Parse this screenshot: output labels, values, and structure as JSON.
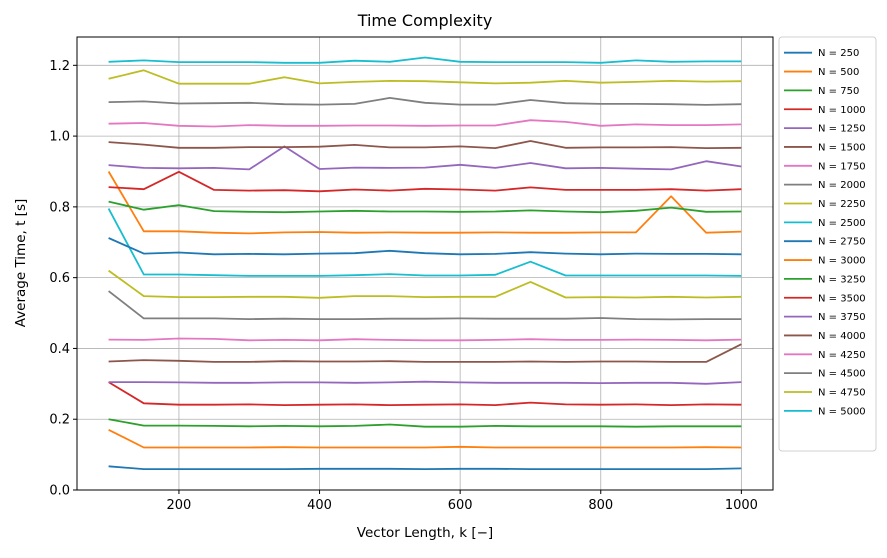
{
  "chart_data": {
    "type": "line",
    "title": "Time Complexity",
    "xlabel": "Vector Length, k [−]",
    "ylabel": "Average Time, t [s]",
    "xlim": [
      55,
      1045
    ],
    "ylim": [
      0,
      1.28
    ],
    "xticks": [
      200,
      400,
      600,
      800,
      1000
    ],
    "xtick_labels": [
      "200",
      "400",
      "600",
      "800",
      "1000"
    ],
    "yticks": [
      0,
      0.2,
      0.4,
      0.6,
      0.8,
      1.0,
      1.2
    ],
    "ytick_labels": [
      "0.0",
      "0.2",
      "0.4",
      "0.6",
      "0.8",
      "1.0",
      "1.2"
    ],
    "grid": true,
    "legend_placement": "outside-right",
    "x": [
      100,
      150,
      200,
      250,
      300,
      350,
      400,
      450,
      500,
      550,
      600,
      650,
      700,
      750,
      800,
      850,
      900,
      950,
      1000
    ],
    "series": [
      {
        "name": "N = 250",
        "color": "#1f77b4",
        "values": [
          0.067,
          0.059,
          0.059,
          0.059,
          0.059,
          0.059,
          0.06,
          0.06,
          0.06,
          0.059,
          0.06,
          0.06,
          0.059,
          0.059,
          0.059,
          0.059,
          0.059,
          0.059,
          0.061
        ]
      },
      {
        "name": "N = 500",
        "color": "#ff7f0e",
        "values": [
          0.17,
          0.12,
          0.12,
          0.12,
          0.12,
          0.121,
          0.12,
          0.12,
          0.12,
          0.12,
          0.122,
          0.12,
          0.12,
          0.12,
          0.12,
          0.12,
          0.12,
          0.121,
          0.12
        ]
      },
      {
        "name": "N = 750",
        "color": "#2ca02c",
        "values": [
          0.2,
          0.182,
          0.182,
          0.181,
          0.18,
          0.181,
          0.18,
          0.181,
          0.185,
          0.179,
          0.179,
          0.181,
          0.18,
          0.18,
          0.18,
          0.179,
          0.18,
          0.18,
          0.18
        ]
      },
      {
        "name": "N = 1000",
        "color": "#d62728",
        "values": [
          0.305,
          0.245,
          0.241,
          0.241,
          0.242,
          0.24,
          0.241,
          0.242,
          0.24,
          0.241,
          0.242,
          0.24,
          0.247,
          0.242,
          0.241,
          0.242,
          0.24,
          0.242,
          0.241
        ]
      },
      {
        "name": "N = 1250",
        "color": "#9467bd",
        "values": [
          0.305,
          0.305,
          0.304,
          0.303,
          0.303,
          0.304,
          0.304,
          0.303,
          0.304,
          0.306,
          0.304,
          0.303,
          0.303,
          0.303,
          0.302,
          0.303,
          0.303,
          0.3,
          0.305
        ]
      },
      {
        "name": "N = 1500",
        "color": "#8c564b",
        "values": [
          0.363,
          0.367,
          0.365,
          0.362,
          0.362,
          0.364,
          0.363,
          0.363,
          0.364,
          0.362,
          0.362,
          0.362,
          0.363,
          0.362,
          0.363,
          0.363,
          0.362,
          0.362,
          0.412
        ]
      },
      {
        "name": "N = 1750",
        "color": "#e377c2",
        "values": [
          0.425,
          0.424,
          0.428,
          0.427,
          0.423,
          0.424,
          0.423,
          0.426,
          0.424,
          0.423,
          0.423,
          0.424,
          0.426,
          0.424,
          0.424,
          0.425,
          0.424,
          0.423,
          0.425
        ]
      },
      {
        "name": "N = 2000",
        "color": "#7f7f7f",
        "values": [
          0.562,
          0.485,
          0.485,
          0.485,
          0.483,
          0.484,
          0.483,
          0.483,
          0.484,
          0.484,
          0.485,
          0.484,
          0.484,
          0.484,
          0.486,
          0.483,
          0.482,
          0.483,
          0.483
        ]
      },
      {
        "name": "N = 2250",
        "color": "#bcbd22",
        "values": [
          0.62,
          0.548,
          0.545,
          0.545,
          0.546,
          0.546,
          0.543,
          0.548,
          0.548,
          0.545,
          0.546,
          0.546,
          0.588,
          0.544,
          0.545,
          0.544,
          0.546,
          0.544,
          0.546
        ]
      },
      {
        "name": "N = 2500",
        "color": "#17becf",
        "values": [
          0.795,
          0.609,
          0.609,
          0.607,
          0.605,
          0.605,
          0.605,
          0.607,
          0.61,
          0.606,
          0.606,
          0.608,
          0.645,
          0.606,
          0.606,
          0.606,
          0.606,
          0.606,
          0.605
        ]
      },
      {
        "name": "N = 2750",
        "color": "#1f77b4",
        "values": [
          0.712,
          0.668,
          0.671,
          0.666,
          0.667,
          0.666,
          0.668,
          0.669,
          0.676,
          0.669,
          0.666,
          0.667,
          0.672,
          0.668,
          0.666,
          0.668,
          0.667,
          0.667,
          0.666
        ]
      },
      {
        "name": "N = 3000",
        "color": "#ff7f0e",
        "values": [
          0.9,
          0.731,
          0.731,
          0.727,
          0.725,
          0.728,
          0.729,
          0.727,
          0.728,
          0.727,
          0.727,
          0.728,
          0.727,
          0.727,
          0.728,
          0.728,
          0.83,
          0.727,
          0.73
        ]
      },
      {
        "name": "N = 3250",
        "color": "#2ca02c",
        "values": [
          0.815,
          0.792,
          0.805,
          0.788,
          0.786,
          0.785,
          0.787,
          0.789,
          0.787,
          0.787,
          0.786,
          0.787,
          0.79,
          0.787,
          0.785,
          0.789,
          0.798,
          0.786,
          0.787
        ]
      },
      {
        "name": "N = 3500",
        "color": "#d62728",
        "values": [
          0.856,
          0.85,
          0.899,
          0.848,
          0.846,
          0.847,
          0.844,
          0.849,
          0.846,
          0.851,
          0.849,
          0.846,
          0.855,
          0.848,
          0.848,
          0.848,
          0.85,
          0.846,
          0.85
        ]
      },
      {
        "name": "N = 3750",
        "color": "#9467bd",
        "values": [
          0.918,
          0.91,
          0.909,
          0.91,
          0.906,
          0.971,
          0.907,
          0.911,
          0.91,
          0.911,
          0.919,
          0.91,
          0.924,
          0.909,
          0.91,
          0.908,
          0.906,
          0.929,
          0.914
        ]
      },
      {
        "name": "N = 4000",
        "color": "#8c564b",
        "values": [
          0.983,
          0.976,
          0.967,
          0.967,
          0.969,
          0.969,
          0.97,
          0.975,
          0.968,
          0.968,
          0.971,
          0.966,
          0.986,
          0.967,
          0.968,
          0.968,
          0.969,
          0.966,
          0.967
        ]
      },
      {
        "name": "N = 4250",
        "color": "#e377c2",
        "values": [
          1.035,
          1.037,
          1.029,
          1.027,
          1.031,
          1.029,
          1.029,
          1.03,
          1.03,
          1.029,
          1.03,
          1.03,
          1.045,
          1.04,
          1.029,
          1.033,
          1.031,
          1.031,
          1.033
        ]
      },
      {
        "name": "N = 4500",
        "color": "#7f7f7f",
        "values": [
          1.096,
          1.098,
          1.092,
          1.093,
          1.094,
          1.09,
          1.089,
          1.091,
          1.108,
          1.094,
          1.089,
          1.089,
          1.102,
          1.093,
          1.091,
          1.091,
          1.09,
          1.088,
          1.09
        ]
      },
      {
        "name": "N = 4750",
        "color": "#bcbd22",
        "values": [
          1.162,
          1.186,
          1.148,
          1.148,
          1.148,
          1.166,
          1.149,
          1.153,
          1.156,
          1.155,
          1.152,
          1.149,
          1.151,
          1.156,
          1.151,
          1.153,
          1.156,
          1.154,
          1.155
        ]
      },
      {
        "name": "N = 5000",
        "color": "#17becf",
        "values": [
          1.21,
          1.214,
          1.209,
          1.209,
          1.209,
          1.207,
          1.207,
          1.213,
          1.21,
          1.222,
          1.21,
          1.209,
          1.209,
          1.209,
          1.207,
          1.214,
          1.21,
          1.211,
          1.211
        ]
      }
    ]
  }
}
